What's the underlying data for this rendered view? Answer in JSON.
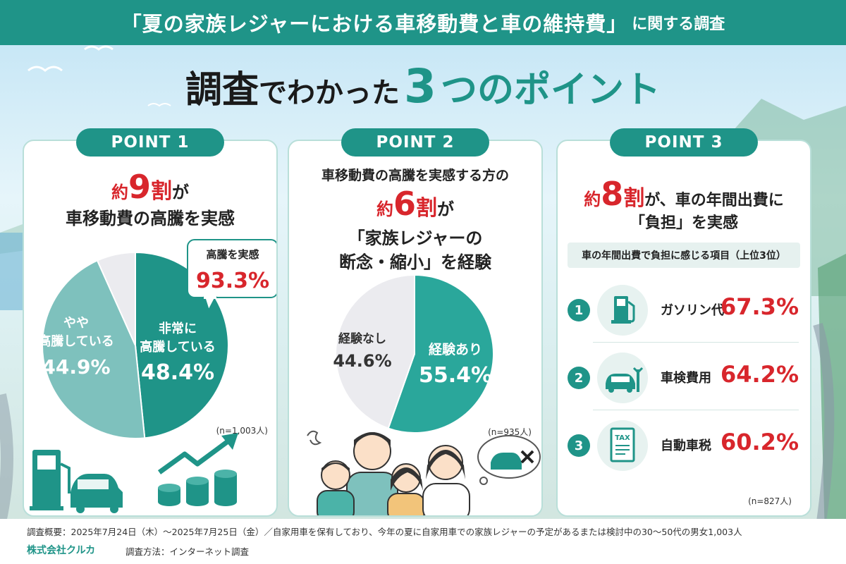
{
  "banner": {
    "main": "「夏の家族レジャーにおける車移動費と車の維持費」",
    "sub": "に関する調査"
  },
  "headline": {
    "a": "調査",
    "b": "でわかった",
    "c": "3",
    "d": "つのポイント"
  },
  "colors": {
    "teal": "#1f9488",
    "teal_light": "#7ec1bd",
    "gray_light": "#ebebef",
    "red": "#d8262c"
  },
  "point1": {
    "pill": "POINT 1",
    "title_pre": "約",
    "title_num": "9",
    "title_unit": "割",
    "title_post": "が",
    "title_line2": "車移動費の高騰を実感",
    "callout_label": "高騰を実感",
    "callout_value": "93.3%",
    "note": "(n=1,003人)"
  },
  "point2": {
    "pill": "POINT 2",
    "title_line1": "車移動費の高騰を実感する方の",
    "title_pre": "約",
    "title_num": "6",
    "title_unit": "割",
    "title_post": "が",
    "title_line3": "「家族レジャーの",
    "title_line4": "断念・縮小」を経験",
    "note": "(n=935人)"
  },
  "point3": {
    "pill": "POINT 3",
    "title_pre": "約",
    "title_num": "8",
    "title_unit": "割",
    "title_post": "が、車の年間出費に",
    "title_line2": "「負担」を実感",
    "subheader": "車の年間出費で負担に感じる項目（上位3位）",
    "items": [
      {
        "rank": "1",
        "label": "ガソリン代",
        "value": "67.3%",
        "icon": "fuel-pump-icon"
      },
      {
        "rank": "2",
        "label": "車検費用",
        "value": "64.2%",
        "icon": "car-wrench-icon"
      },
      {
        "rank": "3",
        "label": "自動車税",
        "value": "60.2%",
        "icon": "tax-document-icon",
        "icon_text": "TAX"
      }
    ],
    "note": "(n=827人)"
  },
  "chart_data": [
    {
      "type": "pie",
      "categories": [
        "非常に高騰している",
        "やや高騰している",
        ""
      ],
      "label_lines": [
        [
          "非常に",
          "高騰している"
        ],
        [
          "やや",
          "高騰している"
        ],
        []
      ],
      "values": [
        48.4,
        44.9,
        6.7
      ],
      "value_labels": [
        "48.4%",
        "44.9%",
        ""
      ],
      "colors": [
        "#1f9488",
        "#7ec1bd",
        "#ebebef"
      ]
    },
    {
      "type": "pie",
      "categories": [
        "経験あり",
        "経験なし"
      ],
      "label_lines": [
        [
          "経験あり"
        ],
        [
          "経験なし"
        ]
      ],
      "values": [
        55.4,
        44.6
      ],
      "value_labels": [
        "55.4%",
        "44.6%"
      ],
      "colors": [
        "#2aa79b",
        "#ebebef"
      ]
    },
    {
      "type": "bar",
      "categories": [
        "ガソリン代",
        "車検費用",
        "自動車税"
      ],
      "values": [
        67.3,
        64.2,
        60.2
      ]
    }
  ],
  "footer": {
    "line1": "調査概要：2025年7月24日（木）～2025年7月25日（金）／自家用車を保有しており、今年の夏に自家用車での家族レジャーの予定があるまたは検討中の30～50代の男女1,003人",
    "company": "株式会社クルカ",
    "method": "調査方法：インターネット調査"
  }
}
